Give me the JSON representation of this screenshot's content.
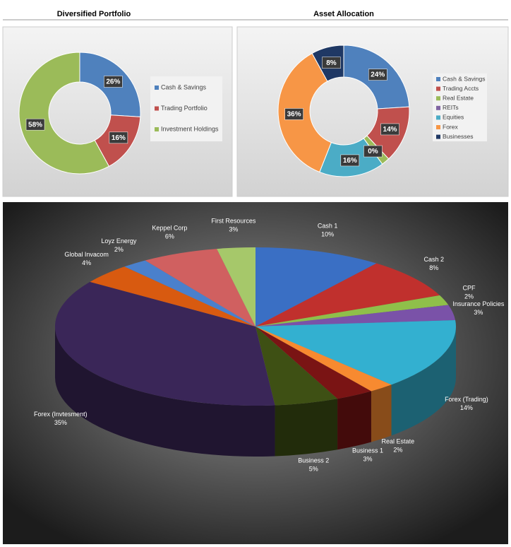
{
  "chart_data": [
    {
      "type": "doughnut",
      "title": "Diversified Portfolio",
      "categories": [
        "Cash & Savings",
        "Trading Portfolio",
        "Investment Holdings"
      ],
      "values": [
        26,
        16,
        58
      ],
      "value_labels": [
        "26%",
        "16%",
        "58%"
      ],
      "colors": [
        "#4f81bd",
        "#c0504d",
        "#9bbb59"
      ],
      "legend": "right"
    },
    {
      "type": "doughnut",
      "title": "Asset Allocation",
      "categories": [
        "Cash & Savings",
        "Trading Accts",
        "Real Estate",
        "REITs",
        "Equities",
        "Forex",
        "Businesses"
      ],
      "values": [
        24,
        14,
        2,
        0,
        16,
        36,
        8
      ],
      "value_labels": [
        "24%",
        "14%",
        null,
        "0%",
        "16%",
        "36%",
        "8%"
      ],
      "colors": [
        "#4f81bd",
        "#c0504d",
        "#9bbb59",
        "#8064a2",
        "#4bacc6",
        "#f79646",
        "#1f3864"
      ],
      "legend": "right"
    },
    {
      "type": "pie3d",
      "categories": [
        "Cash 1",
        "Cash 2",
        "CPF",
        "Insurance Policies",
        "Forex (Trading)",
        "Real Estate",
        "Business 1",
        "Business 2",
        "Forex (Invtesment)",
        "Global Invacom",
        "Loyz Energy",
        "Keppel Corp",
        "First Resources"
      ],
      "values": [
        10,
        8,
        2,
        3,
        14,
        2,
        3,
        5,
        35,
        4,
        2,
        6,
        3
      ],
      "value_labels": [
        "10%",
        "8%",
        "2%",
        "3%",
        "14%",
        "2%",
        "3%",
        "5%",
        "35%",
        "4%",
        "2%",
        "6%",
        "3%"
      ],
      "colors": [
        "#3a6fc4",
        "#c0302d",
        "#8fbf4a",
        "#7a52a8",
        "#33b0d0",
        "#f78a30",
        "#7a1414",
        "#3e5014",
        "#3a2658",
        "#d85a10",
        "#4a80cc",
        "#d06060",
        "#a6c86a"
      ]
    }
  ]
}
